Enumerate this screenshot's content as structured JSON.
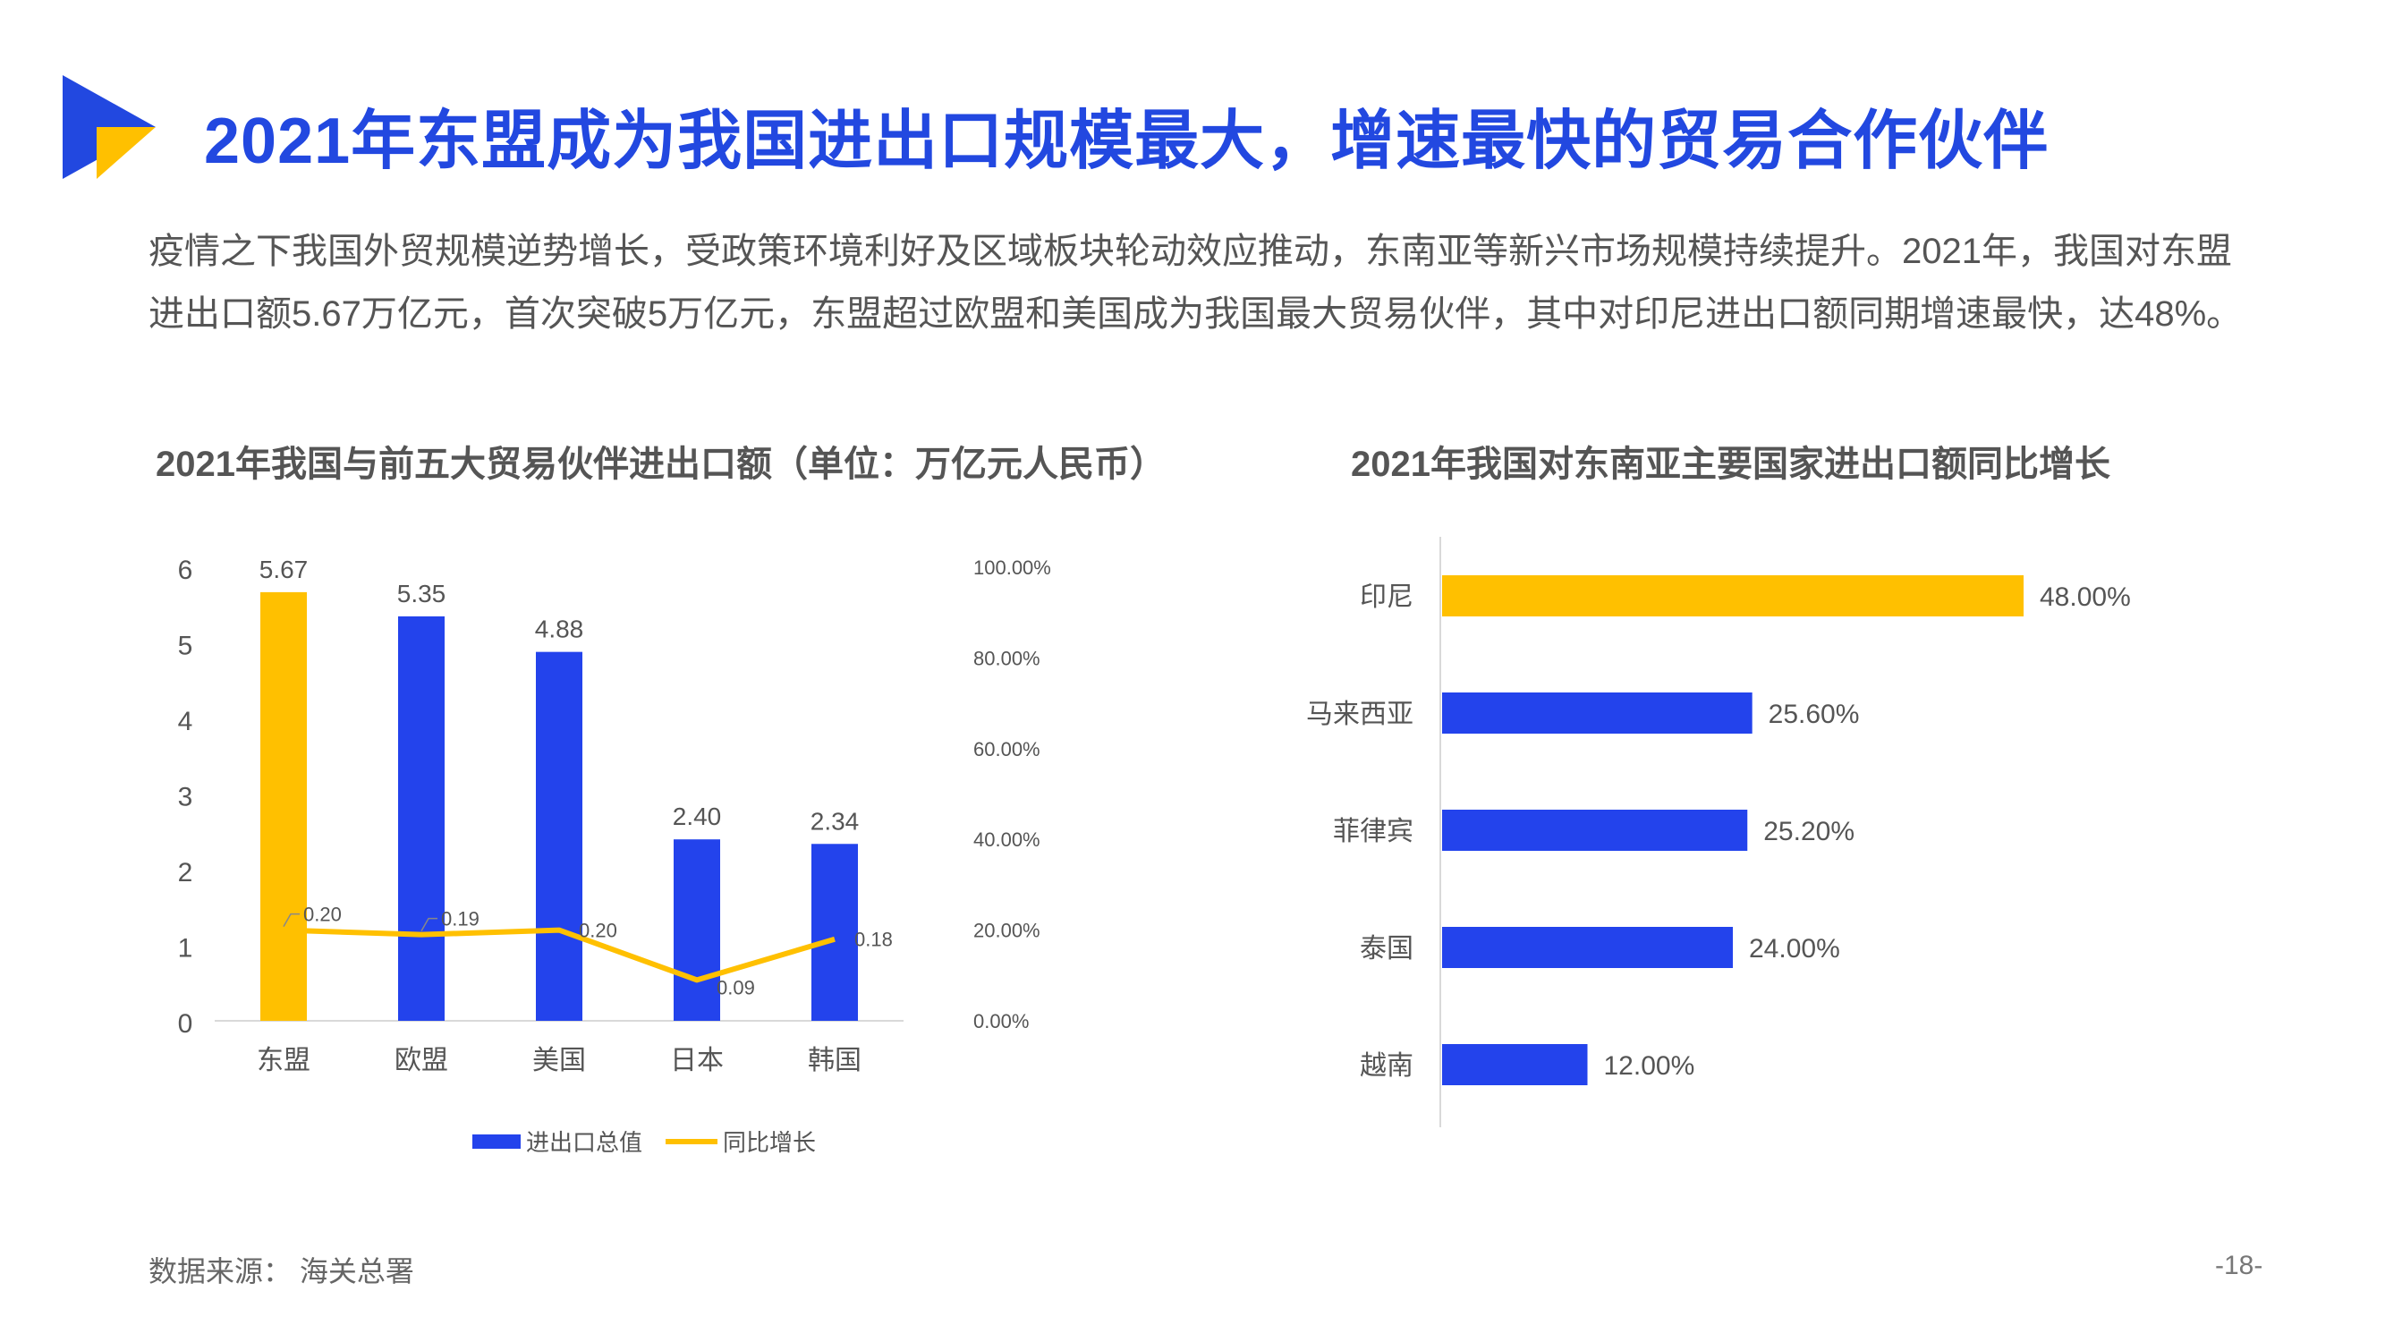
{
  "header": {
    "title": "2021年东盟成为我国进出口规模最大，增速最快的贸易合作伙伴",
    "intro_line1": "疫情之下我国外贸规模逆势增长，受政策环境利好及区域板块轮动效应推动，东南亚等新兴市场规模持续提升。2021年，我国对东盟",
    "intro_line2": "进出口额5.67万亿元，首次突破5万亿元，东盟超过欧盟和美国成为我国最大贸易伙伴，其中对印尼进出口额同期增速最快，达48%。"
  },
  "colors": {
    "brand_blue": "#2248E0",
    "bar_blue": "#2343EC",
    "highlight_yellow": "#FFC000"
  },
  "chart_data": [
    {
      "type": "bar",
      "title": "2021年我国与前五大贸易伙伴进出口额（单位：万亿元人民币）",
      "categories": [
        "东盟",
        "欧盟",
        "美国",
        "日本",
        "韩国"
      ],
      "series": [
        {
          "name": "进出口总值",
          "type": "bar",
          "axis": "left",
          "values": [
            5.67,
            5.35,
            4.88,
            2.4,
            2.34
          ],
          "labels": [
            "5.67",
            "5.35",
            "4.88",
            "2.40",
            "2.34"
          ],
          "highlight_index": 0
        },
        {
          "name": "同比增长",
          "type": "line",
          "axis": "right",
          "values": [
            0.2,
            0.19,
            0.2,
            0.09,
            0.18
          ],
          "labels": [
            "0.20",
            "0.19",
            "0.20",
            "0.09",
            "0.18"
          ]
        }
      ],
      "y_left": {
        "range": [
          0,
          6
        ],
        "ticks": [
          "0",
          "1",
          "2",
          "3",
          "4",
          "5",
          "6"
        ]
      },
      "y_right": {
        "range": [
          0,
          1
        ],
        "ticks": [
          "0.00%",
          "20.00%",
          "40.00%",
          "60.00%",
          "80.00%",
          "100.00%"
        ]
      },
      "legend_position": "bottom"
    },
    {
      "type": "bar",
      "orientation": "horizontal",
      "title": "2021年我国对东南亚主要国家进出口额同比增长",
      "categories": [
        "印尼",
        "马来西亚",
        "菲律宾",
        "泰国",
        "越南"
      ],
      "values": [
        48.0,
        25.6,
        25.2,
        24.0,
        12.0
      ],
      "labels": [
        "48.00%",
        "25.60%",
        "25.20%",
        "24.00%",
        "12.00%"
      ],
      "highlight_index": 0
    }
  ],
  "footer": {
    "source": "数据来源： 海关总署",
    "page": "-18-"
  }
}
